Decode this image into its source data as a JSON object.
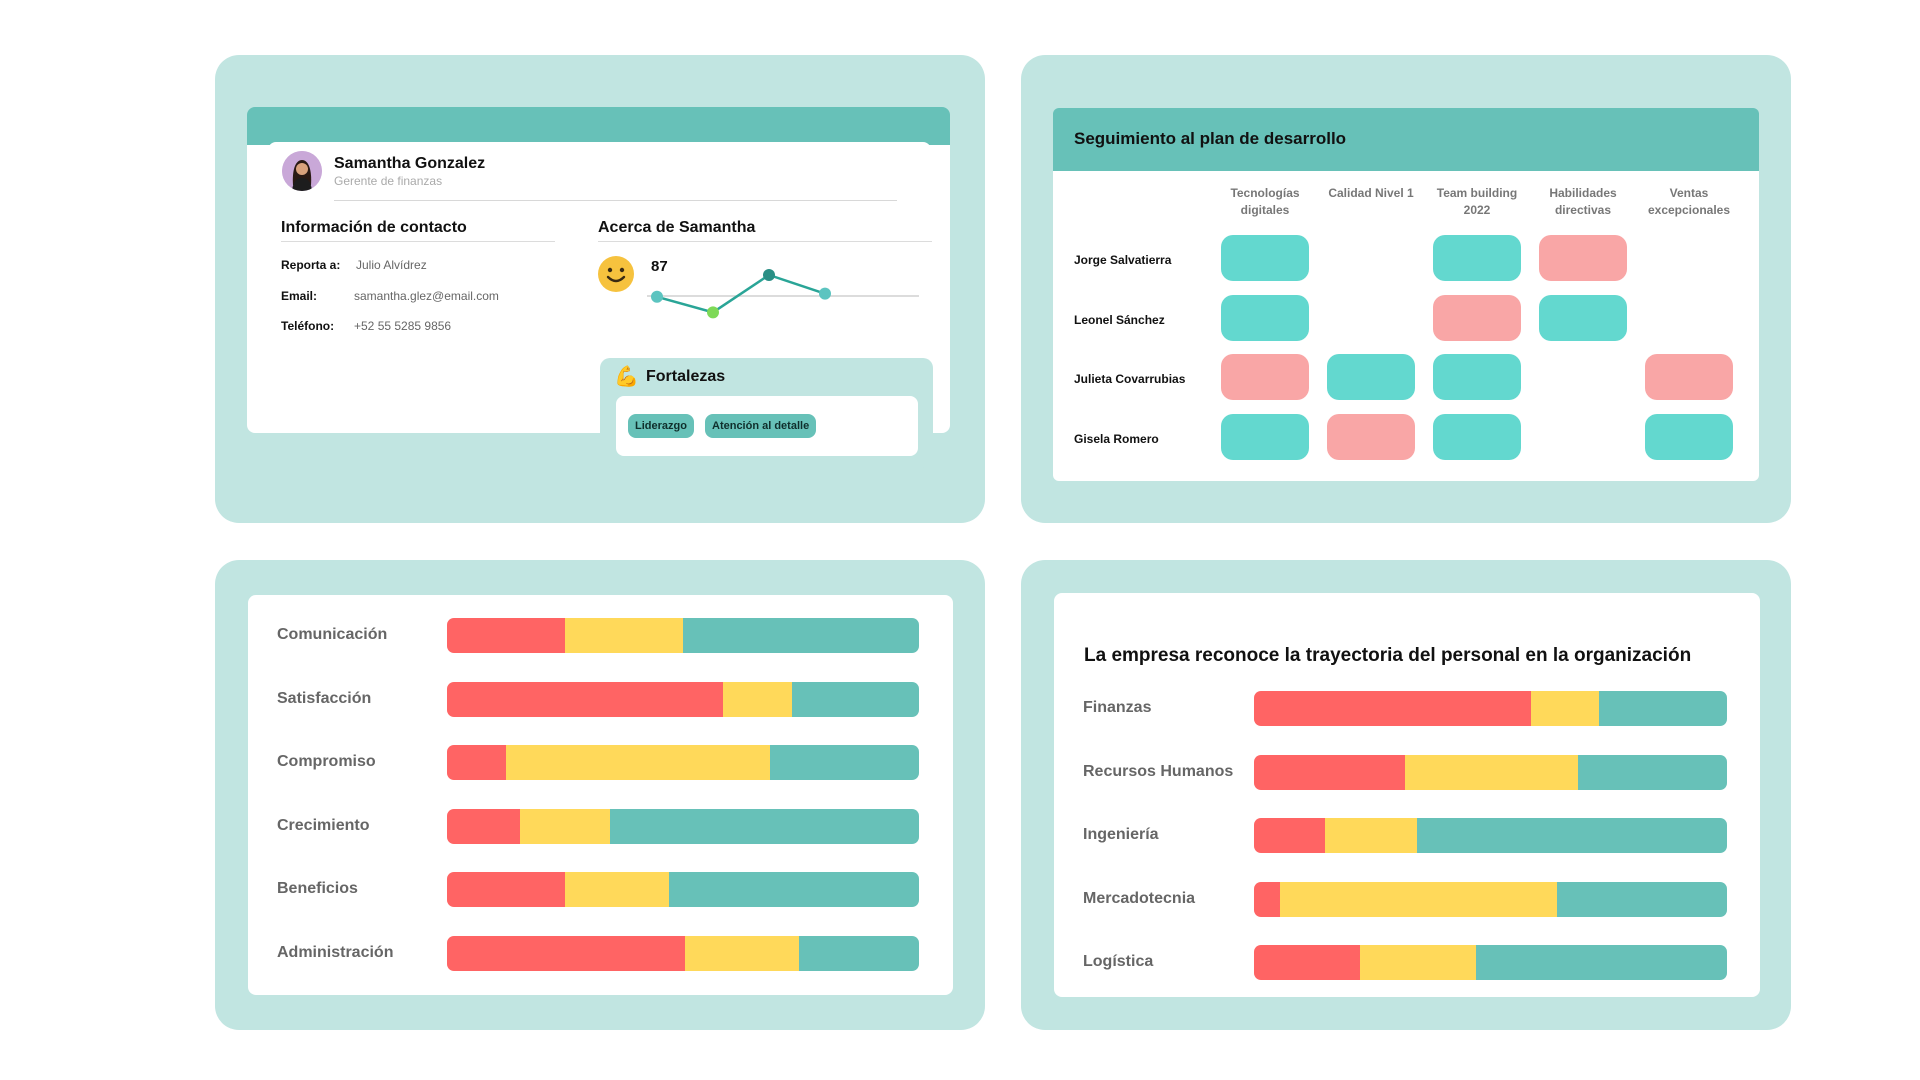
{
  "colors": {
    "panel_bg": "#c1e5e1",
    "teal": "#67c1b8",
    "cell_teal": "#63d8cf",
    "cell_pink": "#f9a6a6",
    "bar_red": "#ff6464",
    "bar_yellow": "#ffd95a",
    "bar_teal": "#67c1b8"
  },
  "profile": {
    "name": "Samantha Gonzalez",
    "role": "Gerente de finanzas",
    "contact_title": "Información de contacto",
    "contacts": [
      {
        "label": "Reporta a:",
        "value": "Julio Alvídrez"
      },
      {
        "label": "Email:",
        "value": "samantha.glez@email.com"
      },
      {
        "label": "Teléfono:",
        "value": "+52 55 5285 9856"
      }
    ],
    "about_title": "Acerca de Samantha",
    "score": "87",
    "sparkline": [
      82,
      72,
      96,
      84
    ],
    "strengths_title": "Fortalezas",
    "strengths": [
      "Liderazgo",
      "Atención al detalle"
    ]
  },
  "plan": {
    "title": "Seguimiento al plan de desarrollo",
    "columns": [
      "Tecnologías digitales",
      "Calidad Nivel 1",
      "Team  building 2022",
      "Habilidades directivas",
      "Ventas excepcionales"
    ],
    "rows": [
      {
        "name": "Jorge Salvatierra",
        "cells": [
          "teal",
          "",
          "teal",
          "pink",
          ""
        ]
      },
      {
        "name": "Leonel Sánchez",
        "cells": [
          "teal",
          "",
          "pink",
          "teal",
          ""
        ]
      },
      {
        "name": "Julieta Covarrubias",
        "cells": [
          "pink",
          "teal",
          "teal",
          "",
          "pink"
        ]
      },
      {
        "name": "Gisela Romero",
        "cells": [
          "teal",
          "pink",
          "teal",
          "",
          "teal"
        ]
      }
    ]
  },
  "engagement": {
    "rows": [
      {
        "label": "Comunicación",
        "values": [
          25,
          25,
          50
        ]
      },
      {
        "label": "Satisfacción",
        "values": [
          58.5,
          14.5,
          27
        ]
      },
      {
        "label": "Compromiso",
        "values": [
          12.5,
          56,
          31.5
        ]
      },
      {
        "label": "Crecimiento",
        "values": [
          15.5,
          19,
          65.5
        ]
      },
      {
        "label": "Beneficios",
        "values": [
          25,
          22,
          53
        ]
      },
      {
        "label": "Administración",
        "values": [
          50.5,
          24,
          25.5
        ]
      }
    ]
  },
  "departments": {
    "title": "La empresa reconoce la trayectoria del personal en la organización",
    "rows": [
      {
        "label": "Finanzas",
        "values": [
          58.5,
          14.5,
          27
        ]
      },
      {
        "label": "Recursos Humanos",
        "values": [
          32,
          36.5,
          31.5
        ]
      },
      {
        "label": "Ingeniería",
        "values": [
          15,
          19.5,
          65.5
        ]
      },
      {
        "label": "Mercadotecnia",
        "values": [
          5.5,
          58.5,
          36
        ]
      },
      {
        "label": "Logística",
        "values": [
          22.5,
          24.5,
          53
        ]
      }
    ]
  }
}
